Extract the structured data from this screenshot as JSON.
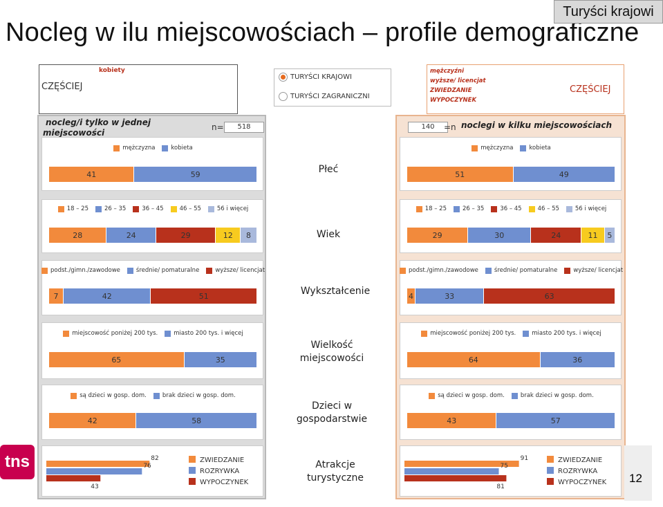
{
  "title": "Nocleg w ilu miejscowościach – profile demograficzne",
  "badge": "Turyści krajowi",
  "page_number": "12",
  "logo_text": "tns",
  "legend_left": {
    "top": "kobiety",
    "main": "CZĘŚCIEJ"
  },
  "legend_right": {
    "lines": [
      "mężczyźni",
      "wyższe/ licencjat",
      "ZWIEDZANIE",
      "WYPOCZYNEK"
    ],
    "main": "CZĘŚCIEJ"
  },
  "radio": {
    "option1": "TURYŚCI KRAJOWI",
    "option2": "TURYŚCI ZAGRANICZNI",
    "selected": "TURYŚCI KRAJOWI"
  },
  "left_panel": {
    "header_line1": "nocleg/i tylko w jednej",
    "header_line2": "miejscowości",
    "n_label": "n=",
    "n_value": "518"
  },
  "right_panel": {
    "header": "noclegi w kilku miejscowościach",
    "n_label": "=n",
    "n_value": "140"
  },
  "labels": {
    "plec": "Płeć",
    "wiek": "Wiek",
    "wyksztalcenie": "Wykształcenie",
    "wielkosc_1": "Wielkość",
    "wielkosc_2": "miejscowości",
    "dzieci_1": "Dzieci w",
    "dzieci_2": "gospodarstwie",
    "atrakcje_1": "Atrakcje",
    "atrakcje_2": "turystyczne"
  },
  "colors": {
    "orange": "#f28a3c",
    "blue": "#6f8fd0",
    "darkred": "#b8311c",
    "yellow": "#f7cb1f",
    "lightblue": "#a9b9dc"
  },
  "chart_data": [
    {
      "type": "bar",
      "title": "Płeć",
      "stacked": true,
      "categories": [
        "mężczyzna",
        "kobieta"
      ],
      "series": [
        {
          "name": "nocleg/i tylko w jednej miejscowości",
          "values": [
            41,
            59
          ]
        },
        {
          "name": "noclegi w kilku miejscowościach",
          "values": [
            51,
            49
          ]
        }
      ]
    },
    {
      "type": "bar",
      "title": "Wiek",
      "stacked": true,
      "categories": [
        "18 – 25",
        "26 – 35",
        "36 – 45",
        "46 – 55",
        "56 i więcej"
      ],
      "series": [
        {
          "name": "nocleg/i tylko w jednej miejscowości",
          "values": [
            28,
            24,
            29,
            12,
            8
          ]
        },
        {
          "name": "noclegi w kilku miejscowościach",
          "values": [
            29,
            30,
            24,
            11,
            5
          ]
        }
      ]
    },
    {
      "type": "bar",
      "title": "Wykształcenie",
      "stacked": true,
      "categories": [
        "podst./gimn./zawodowe",
        "średnie/ pomaturalne",
        "wyższe/ licencjat"
      ],
      "series": [
        {
          "name": "nocleg/i tylko w jednej miejscowości",
          "values": [
            7,
            42,
            51
          ]
        },
        {
          "name": "noclegi w kilku miejscowościach",
          "values": [
            4,
            33,
            63
          ]
        }
      ]
    },
    {
      "type": "bar",
      "title": "Wielkość miejscowości",
      "stacked": true,
      "categories": [
        "miejscowość poniżej 200 tys.",
        "miasto 200 tys. i więcej"
      ],
      "series": [
        {
          "name": "nocleg/i tylko w jednej miejscowości",
          "values": [
            65,
            35
          ]
        },
        {
          "name": "noclegi w kilku miejscowościach",
          "values": [
            64,
            36
          ]
        }
      ]
    },
    {
      "type": "bar",
      "title": "Dzieci w gospodarstwie",
      "stacked": true,
      "categories": [
        "są dzieci w gosp. dom.",
        "brak dzieci w gosp. dom."
      ],
      "series": [
        {
          "name": "nocleg/i tylko w jednej miejscowości",
          "values": [
            42,
            58
          ]
        },
        {
          "name": "noclegi w kilku miejscowościach",
          "values": [
            43,
            57
          ]
        }
      ]
    },
    {
      "type": "bar",
      "title": "Atrakcje turystyczne",
      "stacked": false,
      "categories": [
        "ZWIEDZANIE",
        "ROZRYWKA",
        "WYPOCZYNEK"
      ],
      "xlim": [
        0,
        100
      ],
      "series": [
        {
          "name": "nocleg/i tylko w jednej miejscowości",
          "values": [
            82,
            76,
            43
          ]
        },
        {
          "name": "noclegi w kilku miejscowościach",
          "values": [
            91,
            75,
            81
          ]
        }
      ]
    }
  ]
}
